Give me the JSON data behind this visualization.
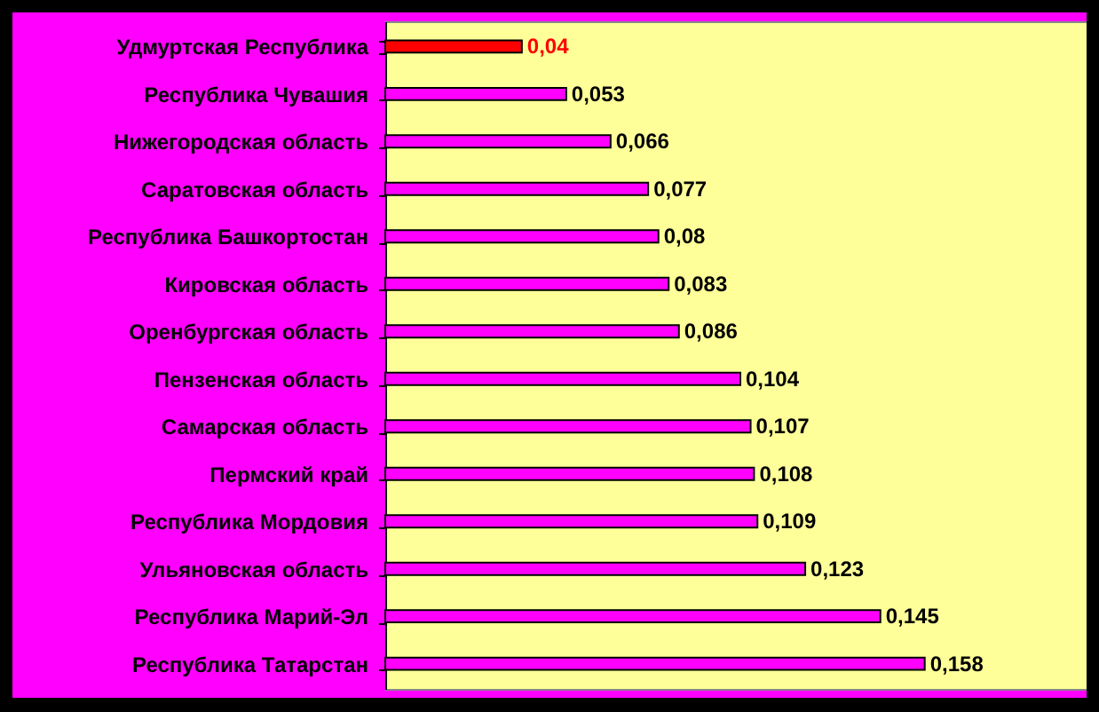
{
  "chart_data": {
    "type": "bar",
    "orientation": "horizontal",
    "categories": [
      "Удмуртская Республика",
      "Республика Чувашия",
      "Нижегородская область",
      "Саратовская область",
      "Республика Башкортостан",
      "Кировская область",
      "Оренбургская область",
      "Пензенская область",
      "Самарская область",
      "Пермский край",
      "Республика Мордовия",
      "Ульяновская область",
      "Республика Марий-Эл",
      "Республика Татарстан"
    ],
    "values": [
      0.04,
      0.053,
      0.066,
      0.077,
      0.08,
      0.083,
      0.086,
      0.104,
      0.107,
      0.108,
      0.109,
      0.123,
      0.145,
      0.158
    ],
    "value_labels": [
      "0,04",
      "0,053",
      "0,066",
      "0,077",
      "0,08",
      "0,083",
      "0,086",
      "0,104",
      "0,107",
      "0,108",
      "0,109",
      "0,123",
      "0,145",
      "0,158"
    ],
    "colors": [
      "#ff0000",
      "#ff00ff",
      "#ff00ff",
      "#ff00ff",
      "#ff00ff",
      "#ff00ff",
      "#ff00ff",
      "#ff00ff",
      "#ff00ff",
      "#ff00ff",
      "#ff00ff",
      "#ff00ff",
      "#ff00ff",
      "#ff00ff"
    ],
    "tick_labels": "y"
  }
}
